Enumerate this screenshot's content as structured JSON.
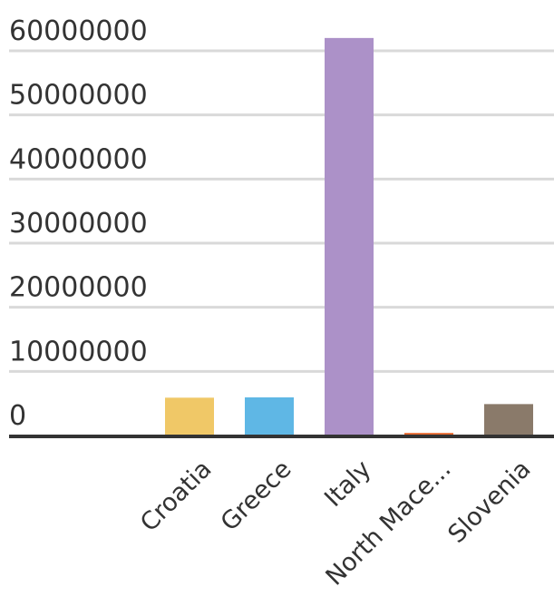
{
  "chart_data": {
    "type": "bar",
    "categories": [
      "Croatia",
      "Greece",
      "Italy",
      "North Mace...",
      "Slovenia"
    ],
    "values": [
      5900000,
      5950000,
      62000000,
      400000,
      4900000
    ],
    "colors": [
      "#f0c867",
      "#5fb7e5",
      "#ac91c8",
      "#e8692e",
      "#8a7a6a"
    ],
    "yticks": [
      "0",
      "10000000",
      "20000000",
      "30000000",
      "40000000",
      "50000000",
      "60000000"
    ],
    "ylim": [
      0,
      60000000
    ],
    "grid": true,
    "legend": "none"
  }
}
